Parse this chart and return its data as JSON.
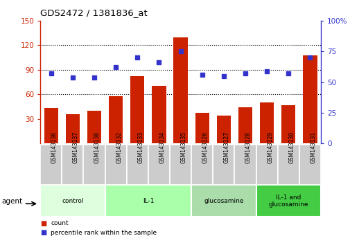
{
  "title": "GDS2472 / 1381836_at",
  "samples": [
    "GSM143136",
    "GSM143137",
    "GSM143138",
    "GSM143132",
    "GSM143133",
    "GSM143134",
    "GSM143135",
    "GSM143126",
    "GSM143127",
    "GSM143128",
    "GSM143129",
    "GSM143130",
    "GSM143131"
  ],
  "counts": [
    43,
    36,
    40,
    58,
    82,
    70,
    130,
    37,
    34,
    44,
    50,
    47,
    108
  ],
  "percentile": [
    57,
    54,
    54,
    62,
    70,
    66,
    75,
    56,
    55,
    57,
    59,
    57,
    70
  ],
  "bar_color": "#cc2200",
  "dot_color": "#3333cc",
  "ylim_left": [
    0,
    150
  ],
  "ylim_right": [
    0,
    100
  ],
  "yticks_left": [
    30,
    60,
    90,
    120,
    150
  ],
  "yticks_right": [
    0,
    25,
    50,
    75,
    100
  ],
  "groups": [
    {
      "label": "control",
      "indices": [
        0,
        1,
        2
      ],
      "color": "#ddffdd"
    },
    {
      "label": "IL-1",
      "indices": [
        3,
        4,
        5,
        6
      ],
      "color": "#aaffaa"
    },
    {
      "label": "glucosamine",
      "indices": [
        7,
        8,
        9
      ],
      "color": "#aaddaa"
    },
    {
      "label": "IL-1 and\nglucosamine",
      "indices": [
        10,
        11,
        12
      ],
      "color": "#44cc44"
    }
  ],
  "legend_count_label": "count",
  "legend_pct_label": "percentile rank within the sample",
  "agent_label": "agent"
}
